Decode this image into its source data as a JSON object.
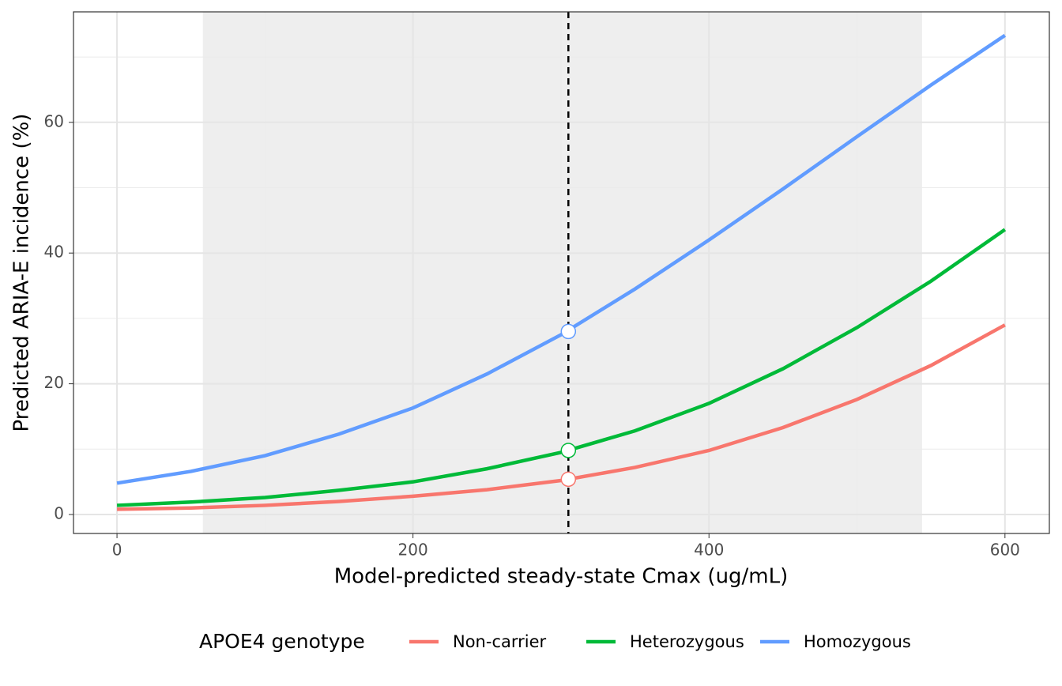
{
  "chart_data": {
    "type": "line",
    "x_label": "Model-predicted steady-state Cmax (ug/mL)",
    "y_label": "Predicted ARIA-E incidence (%)",
    "legend_title": "APOE4 genotype",
    "legend_position": "bottom",
    "grid": true,
    "x": [
      0,
      50,
      100,
      150,
      200,
      250,
      300,
      350,
      400,
      450,
      500,
      550,
      600
    ],
    "series": [
      {
        "name": "Non-carrier",
        "color": "#F8766D",
        "values": [
          0.8,
          1.0,
          1.4,
          2.0,
          2.8,
          3.8,
          5.2,
          7.2,
          9.8,
          13.3,
          17.6,
          22.8,
          29.0
        ],
        "point": 5.4
      },
      {
        "name": "Heterozygous",
        "color": "#00BA38",
        "values": [
          1.4,
          1.9,
          2.6,
          3.7,
          5.0,
          7.0,
          9.5,
          12.8,
          17.0,
          22.3,
          28.6,
          35.7,
          43.6
        ],
        "point": 9.8
      },
      {
        "name": "Homozygous",
        "color": "#619CFF",
        "values": [
          4.8,
          6.6,
          9.0,
          12.3,
          16.3,
          21.5,
          27.5,
          34.5,
          42.0,
          49.8,
          57.8,
          65.7,
          73.3
        ],
        "point": 28.0
      }
    ],
    "reference_x": 305,
    "shaded_range": [
      58,
      544
    ],
    "xlim": [
      -29.4,
      630
    ],
    "ylim": [
      -2.9,
      76.9
    ],
    "xticks": [
      0,
      200,
      400,
      600
    ],
    "yticks": [
      0,
      20,
      40,
      60
    ],
    "xminor": [
      100,
      300,
      500
    ],
    "yminor": [
      10,
      30,
      50,
      70
    ]
  }
}
